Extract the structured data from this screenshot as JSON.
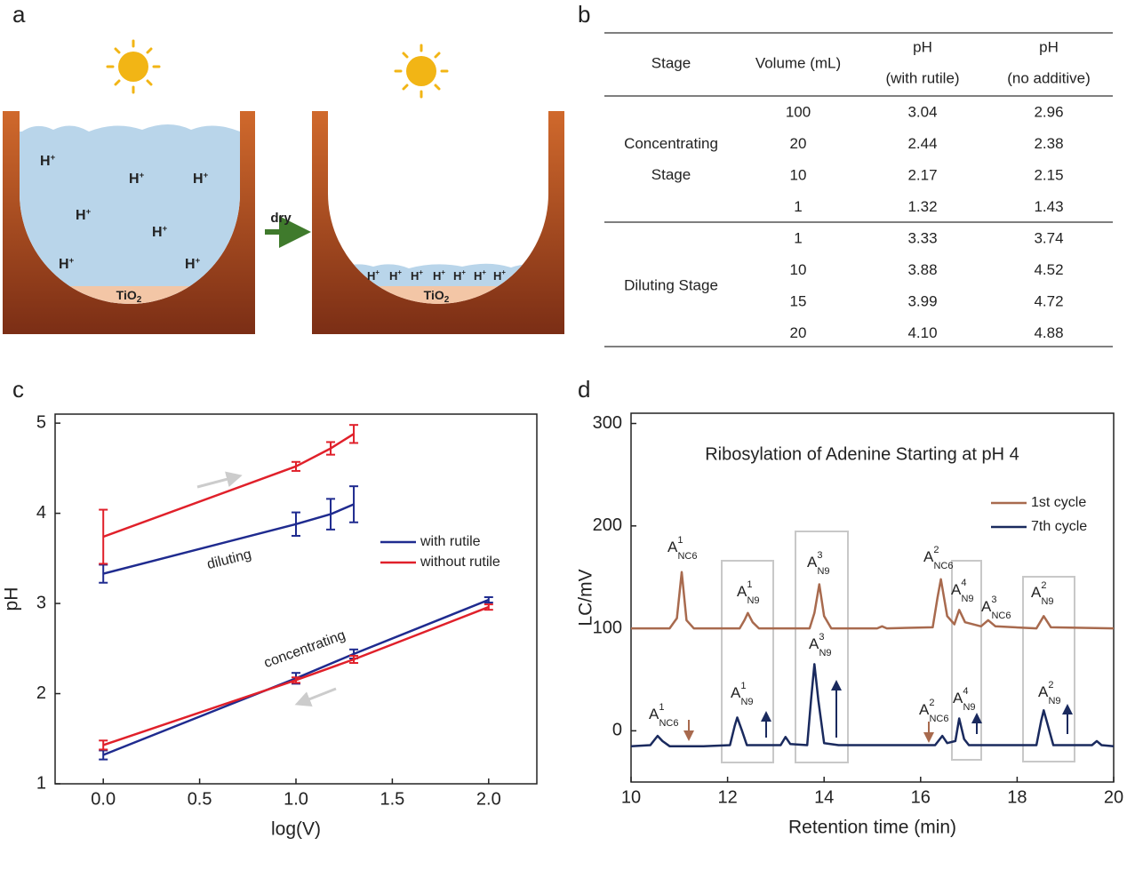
{
  "panel_labels": [
    "a",
    "b",
    "c",
    "d"
  ],
  "panel_a": {
    "arrow_label": "dry",
    "ion": "H",
    "ion_charge": "+",
    "bottom_label": "TiO",
    "bottom_label_sub": "2"
  },
  "panel_b": {
    "table": {
      "header": [
        [
          "Stage"
        ],
        [
          "Volume (mL)"
        ],
        [
          "pH",
          "(with rutile)"
        ],
        [
          "pH",
          "(no additive)"
        ]
      ],
      "groups": [
        {
          "stage": [
            "Concentrating",
            "Stage"
          ],
          "rows": [
            [
              "100",
              "3.04",
              "2.96"
            ],
            [
              "20",
              "2.44",
              "2.38"
            ],
            [
              "10",
              "2.17",
              "2.15"
            ],
            [
              "1",
              "1.32",
              "1.43"
            ]
          ]
        },
        {
          "stage": [
            "Diluting Stage"
          ],
          "rows": [
            [
              "1",
              "3.33",
              "3.74"
            ],
            [
              "10",
              "3.88",
              "4.52"
            ],
            [
              "15",
              "3.99",
              "4.72"
            ],
            [
              "20",
              "4.10",
              "4.88"
            ]
          ]
        }
      ]
    }
  },
  "chart_data": [
    {
      "type": "line",
      "xlabel": "log(V)",
      "ylabel": "pH",
      "xlim": [
        -0.25,
        2.25
      ],
      "xticks": [
        {
          "value": 0,
          "label": "0.0"
        },
        0.5,
        {
          "value": 1,
          "label": "1.0"
        },
        1.5,
        {
          "value": 2,
          "label": "2.0"
        }
      ],
      "ylim": [
        1,
        5.1
      ],
      "yticks": [
        1,
        2,
        3,
        4,
        5
      ],
      "legend": "center right",
      "annotations": [
        "diluting",
        "concentrating"
      ],
      "series": [
        {
          "name": "with rutile",
          "color": "#1f2b8f",
          "x": [
            0,
            1,
            1.18,
            1.3,
            null,
            0,
            1,
            1.3,
            2
          ],
          "values": [
            3.33,
            3.88,
            3.99,
            4.1,
            null,
            1.32,
            2.17,
            2.44,
            3.04
          ],
          "errors": [
            0.1,
            0.13,
            0.17,
            0.2,
            null,
            0.05,
            0.06,
            0.05,
            0.03
          ]
        },
        {
          "name": "without rutile",
          "color": "#e0202a",
          "x": [
            0,
            1,
            1.18,
            1.3,
            null,
            0,
            1,
            1.3,
            2
          ],
          "values": [
            3.74,
            4.52,
            4.72,
            4.88,
            null,
            1.43,
            2.15,
            2.38,
            2.96
          ],
          "errors": [
            0.3,
            0.05,
            0.07,
            0.1,
            null,
            0.05,
            0.03,
            0.04,
            0.03
          ]
        }
      ]
    },
    {
      "type": "line",
      "title": "Ribosylation of Adenine Starting at pH 4",
      "xlabel": "Retention time (min)",
      "ylabel": "LC/mV",
      "xlim": [
        10,
        20
      ],
      "xticks": [
        10,
        12,
        14,
        16,
        18,
        20
      ],
      "ylim": [
        -50,
        310
      ],
      "yticks": [
        0,
        100,
        200,
        300
      ],
      "legend": "upper right",
      "series": [
        {
          "name": "1st cycle",
          "color": "#a86a4e",
          "x": [
            10,
            10.8,
            10.95,
            11.05,
            11.15,
            11.3,
            12.25,
            12.35,
            12.42,
            12.52,
            12.65,
            13.7,
            13.8,
            13.9,
            14.0,
            14.15,
            15.1,
            15.2,
            15.3,
            16.25,
            16.35,
            16.42,
            16.55,
            16.7,
            16.8,
            16.92,
            17.25,
            17.4,
            17.55,
            18.4,
            18.55,
            18.7,
            20
          ],
          "values": [
            100,
            100,
            110,
            155,
            108,
            100,
            100,
            108,
            115,
            106,
            100,
            100,
            115,
            143,
            112,
            100,
            100,
            102,
            100,
            101,
            130,
            148,
            112,
            104,
            118,
            106,
            102,
            108,
            102,
            100,
            112,
            101,
            100
          ]
        },
        {
          "name": "7th cycle",
          "color": "#1a2a5e",
          "x": [
            10,
            10.4,
            10.5,
            10.55,
            10.65,
            10.8,
            11.5,
            12.05,
            12.15,
            12.2,
            12.3,
            12.4,
            13.1,
            13.2,
            13.3,
            13.65,
            13.73,
            13.8,
            13.88,
            14.0,
            14.3,
            16.3,
            16.45,
            16.55,
            16.72,
            16.8,
            16.9,
            17.0,
            18.4,
            18.5,
            18.55,
            18.62,
            18.75,
            19.55,
            19.65,
            19.75,
            20
          ],
          "values": [
            -15,
            -14,
            -8,
            -5,
            -10,
            -15,
            -15,
            -14,
            5,
            13,
            0,
            -14,
            -14,
            -6,
            -13,
            -14,
            30,
            65,
            30,
            -12,
            -14,
            -14,
            -5,
            -12,
            -10,
            12,
            -8,
            -14,
            -14,
            10,
            20,
            8,
            -14,
            -14,
            -10,
            -14,
            -15
          ]
        }
      ],
      "annotations": [
        {
          "text": "A",
          "sup": "1",
          "sub": "NC6"
        },
        {
          "text": "A",
          "sup": "1",
          "sub": "N9"
        },
        {
          "text": "A",
          "sup": "3",
          "sub": "N9"
        },
        {
          "text": "A",
          "sup": "2",
          "sub": "NC6"
        },
        {
          "text": "A",
          "sup": "4",
          "sub": "N9"
        },
        {
          "text": "A",
          "sup": "3",
          "sub": "NC6"
        },
        {
          "text": "A",
          "sup": "2",
          "sub": "N9"
        },
        {
          "text": "A",
          "sup": "1",
          "sub": "NC6"
        },
        {
          "text": "A",
          "sup": "1",
          "sub": "N9"
        },
        {
          "text": "A",
          "sup": "3",
          "sub": "N9"
        },
        {
          "text": "A",
          "sup": "2",
          "sub": "NC6"
        },
        {
          "text": "A",
          "sup": "4",
          "sub": "N9"
        },
        {
          "text": "A",
          "sup": "2",
          "sub": "N9"
        }
      ]
    }
  ]
}
